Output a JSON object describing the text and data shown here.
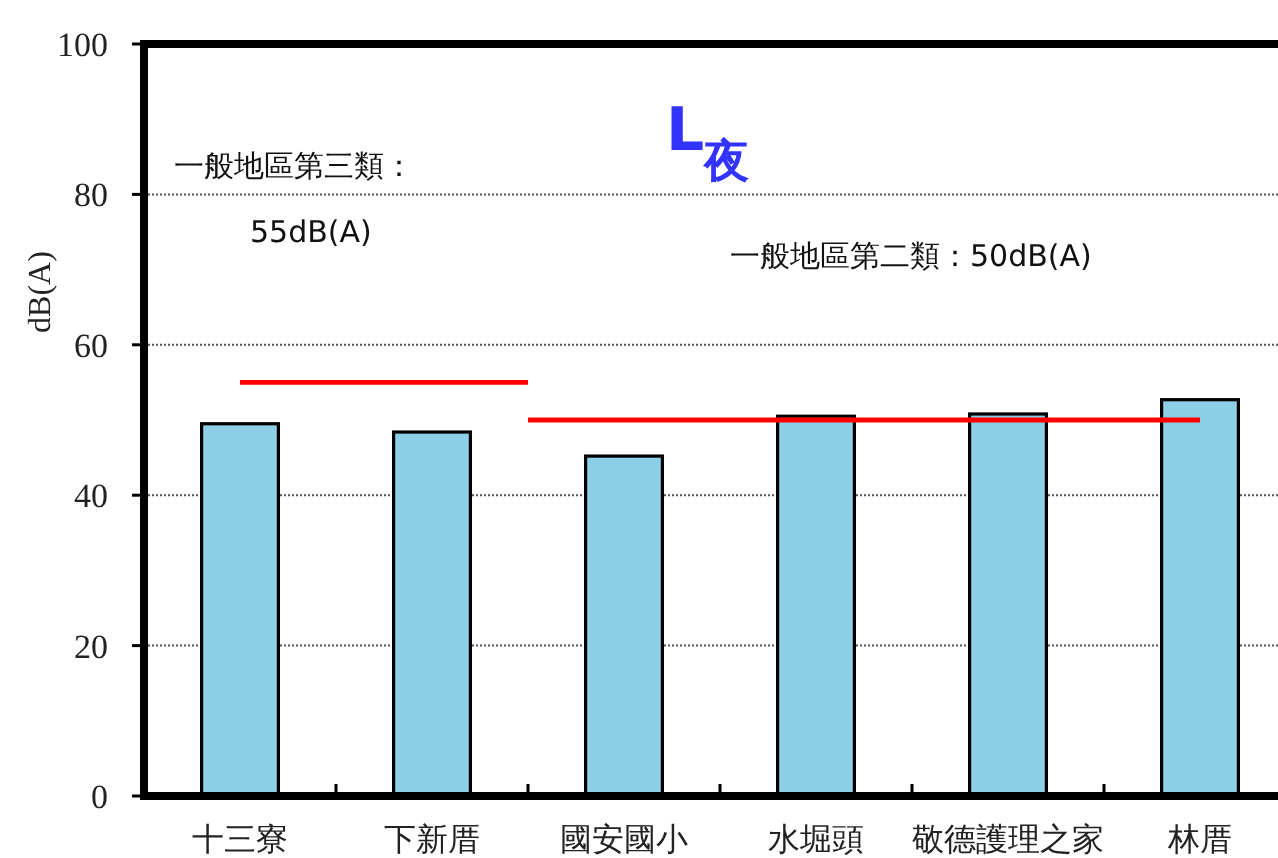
{
  "chart_data": {
    "type": "bar",
    "title": "L$_{夜}$",
    "ylabel": "dB(A)",
    "categories": [
      "十三寮",
      "下新厝",
      "國安國小",
      "水堀頭",
      "敬德護理之家",
      "林厝"
    ],
    "series": [
      {
        "color": "#8ecfe8",
        "values": [
          49.5,
          48.4,
          45.2,
          50.5,
          50.8,
          52.7
        ]
      },
      {
        "type": "step",
        "color": "#ff0000",
        "values": [
          55,
          55,
          50,
          50,
          50,
          50
        ]
      }
    ],
    "ylim": [
      0,
      100
    ],
    "yticks": [
      0,
      20,
      40,
      60,
      80,
      100
    ],
    "grid": "y",
    "annotations": [
      "一般地區第三類：",
      "55dB(A)",
      "一般地區第二類：50dB(A)"
    ]
  }
}
